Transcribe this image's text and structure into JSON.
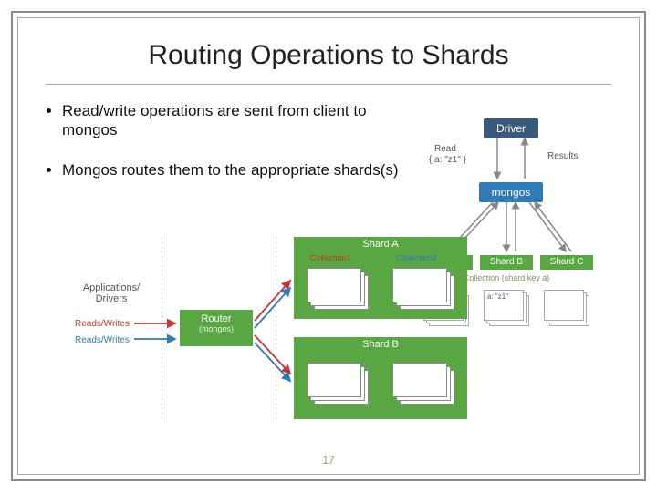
{
  "title": "Routing Operations to Shards",
  "bullets": [
    "Read/write operations are sent from client to mongos",
    "Mongos routes them to the appropriate shards(s)"
  ],
  "page_number": "17",
  "colors": {
    "driver": "#3a5a7a",
    "mongos": "#2e7bb8",
    "shard_green": "#58a742",
    "text_grey": "#555555",
    "olive": "#8a8a68",
    "read_red": "#c33333",
    "write_blue": "#2e7bb8",
    "arrow_grey": "#888888",
    "dash": "#bbbbbb"
  },
  "flow": {
    "driver": "Driver",
    "mongos": "mongos",
    "read_label": "Read",
    "read_query": "{ a: \"z1\" }",
    "results_label": "Results",
    "shards": [
      "Shard A",
      "Shard B",
      "Shard C"
    ],
    "collection_label": "Collection (shard key a)",
    "doc_value": "a: \"z1\""
  },
  "router_diag": {
    "apps": "Applications/\nDrivers",
    "reads_writes": "Reads/Writes",
    "router": "Router",
    "router_sub": "(mongos)",
    "shard_a": "Shard A",
    "shard_b": "Shard B",
    "collection1": "Collection1",
    "collection2": "Collection2"
  }
}
